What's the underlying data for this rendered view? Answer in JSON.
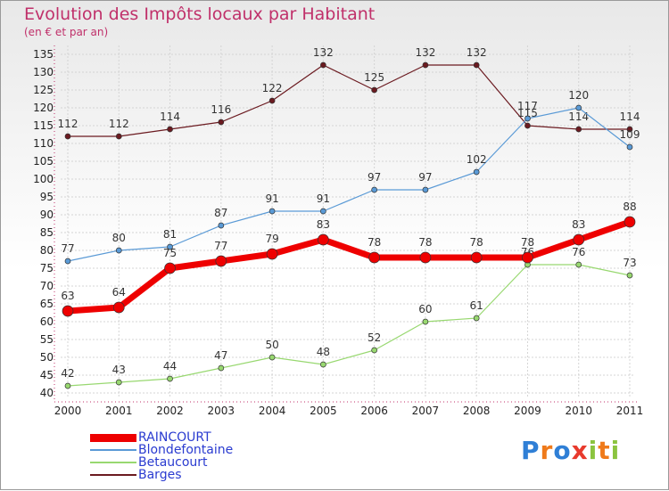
{
  "title": "Evolution des Impôts locaux par Habitant",
  "subtitle": "(en € et par an)",
  "brand": {
    "text": "Proxiti",
    "colors": [
      "#2f7fd6",
      "#ef7a1a",
      "#2f7fd6",
      "#e83a2d",
      "#8bc43f",
      "#ef7a1a",
      "#8bc43f"
    ]
  },
  "chart_data": {
    "type": "line",
    "title": "Evolution des Impôts locaux par Habitant",
    "ylabel": "(en € et par an)",
    "x": [
      "2000",
      "2001",
      "2002",
      "2003",
      "2004",
      "2005",
      "2006",
      "2007",
      "2008",
      "2009",
      "2010",
      "2011"
    ],
    "ylim": [
      40,
      135
    ],
    "yticks": [
      40,
      45,
      50,
      55,
      60,
      65,
      70,
      75,
      80,
      85,
      90,
      95,
      100,
      105,
      110,
      115,
      120,
      125,
      130,
      135
    ],
    "grid": true,
    "legend_position": "bottom-left",
    "series": [
      {
        "name": "Barges",
        "color": "#6b1a20",
        "width": 1.2,
        "marker": 3,
        "values": [
          112,
          112,
          114,
          116,
          122,
          132,
          125,
          132,
          132,
          115,
          114,
          114
        ],
        "labels": [
          "112",
          "112",
          "114",
          "116",
          "122",
          "132",
          "125",
          "132",
          "132",
          "115",
          "114",
          "114"
        ]
      },
      {
        "name": "Blondefontaine",
        "color": "#5a9ad6",
        "width": 1.2,
        "marker": 3,
        "values": [
          77,
          80,
          81,
          87,
          91,
          91,
          97,
          97,
          102,
          117,
          120,
          109
        ],
        "labels": [
          "77",
          "80",
          "81",
          "87",
          "91",
          "91",
          "97",
          "97",
          "102",
          "117",
          "120",
          "109"
        ]
      },
      {
        "name": "Betaucourt",
        "color": "#98d870",
        "width": 1.2,
        "marker": 3,
        "values": [
          42,
          43,
          44,
          47,
          50,
          48,
          52,
          60,
          61,
          76,
          76,
          73
        ],
        "labels": [
          "42",
          "43",
          "44",
          "47",
          "50",
          "48",
          "52",
          "60",
          "61",
          "76",
          "76",
          "73"
        ]
      },
      {
        "name": "RAINCOURT",
        "color": "#ee0000",
        "width": 7,
        "marker": 6,
        "values": [
          63,
          64,
          75,
          77,
          79,
          83,
          78,
          78,
          78,
          78,
          83,
          88
        ],
        "labels": [
          "63",
          "64",
          "75",
          "77",
          "79",
          "83",
          "78",
          "78",
          "78",
          "78",
          "83",
          "88"
        ]
      }
    ],
    "legend": [
      "RAINCOURT",
      "Blondefontaine",
      "Betaucourt",
      "Barges"
    ]
  }
}
